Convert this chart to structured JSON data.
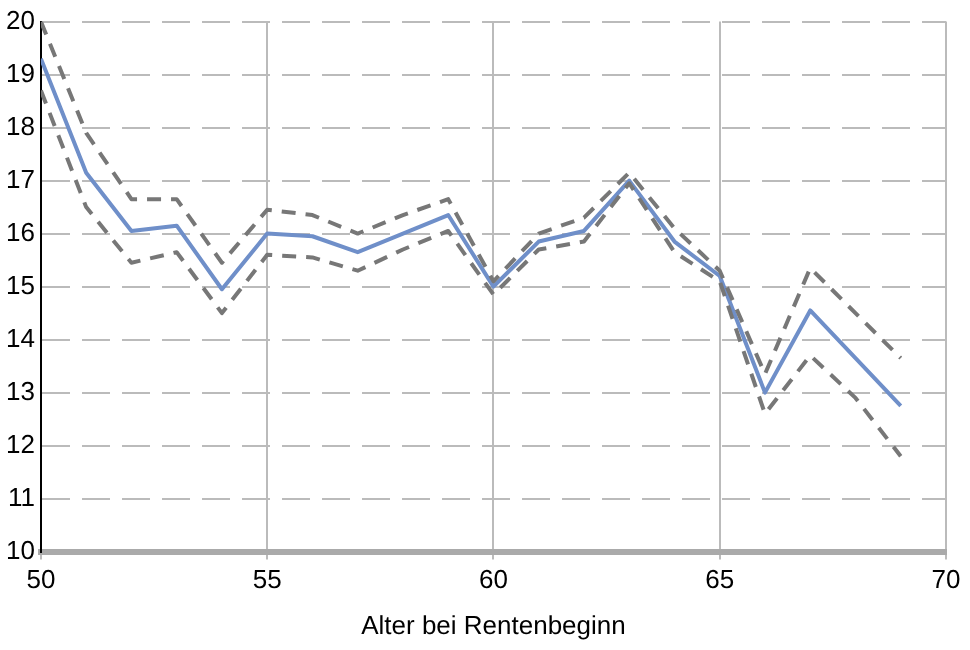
{
  "chart_data": {
    "type": "line",
    "xlabel": "Alter bei Rentenbeginn",
    "x": [
      50,
      51,
      52,
      53,
      54,
      55,
      56,
      57,
      58,
      59,
      60,
      61,
      62,
      63,
      64,
      65,
      66,
      67,
      68,
      69
    ],
    "xlim": [
      50,
      70
    ],
    "xticks": [
      50,
      55,
      60,
      65,
      70
    ],
    "ylim": [
      10,
      20
    ],
    "yticks": [
      10,
      11,
      12,
      13,
      14,
      15,
      16,
      17,
      18,
      19,
      20
    ],
    "grid": true,
    "legend": false,
    "marker": "none",
    "series": [
      {
        "color": "#777777",
        "line_style": "dashed",
        "values": [
          20.0,
          17.9,
          16.65,
          16.65,
          15.45,
          16.45,
          16.35,
          16.0,
          16.35,
          16.65,
          15.1,
          16.0,
          16.3,
          17.15,
          16.1,
          15.3,
          13.35,
          15.35,
          14.5,
          13.65
        ]
      },
      {
        "color": "#777777",
        "line_style": "dashed",
        "values": [
          18.7,
          16.5,
          15.45,
          15.65,
          14.5,
          15.6,
          15.55,
          15.3,
          15.7,
          16.05,
          14.85,
          15.7,
          15.85,
          16.95,
          15.65,
          15.1,
          12.6,
          13.7,
          12.9,
          11.8
        ]
      },
      {
        "color": "#6f8fc9",
        "line_style": "solid",
        "values": [
          19.3,
          17.15,
          16.05,
          16.15,
          14.95,
          16.0,
          15.95,
          15.65,
          16.0,
          16.35,
          15.0,
          15.85,
          16.05,
          17.0,
          15.85,
          15.2,
          13.0,
          14.55,
          13.65,
          12.75
        ]
      }
    ]
  }
}
